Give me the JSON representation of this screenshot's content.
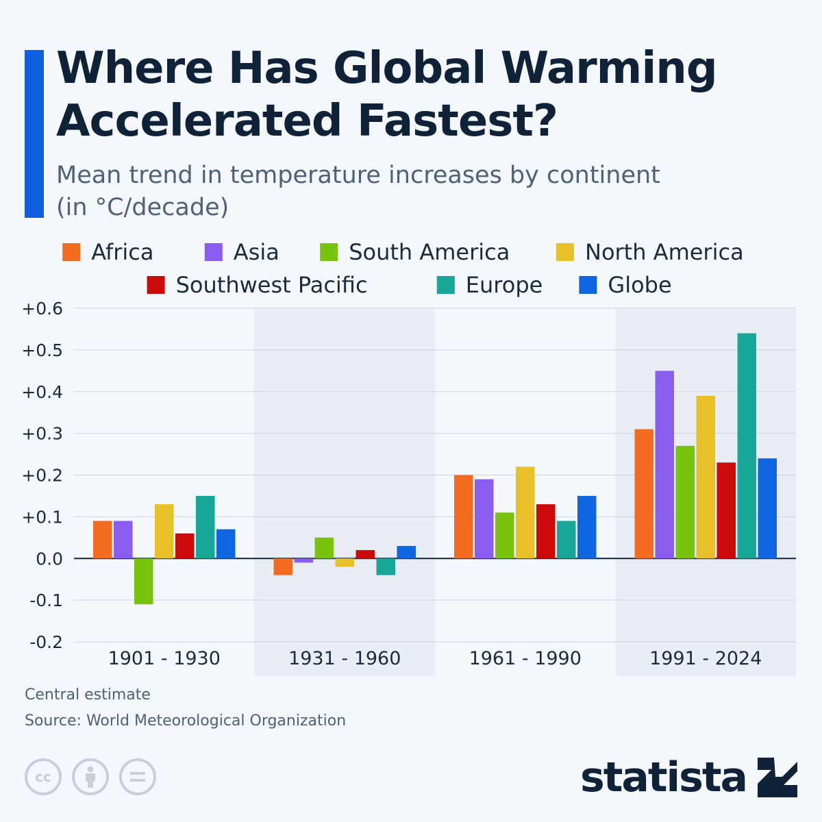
{
  "header": {
    "title": "Where Has Global Warming Accelerated Fastest?",
    "subtitle": "Mean trend in temperature increases by continent (in °C/decade)"
  },
  "footer": {
    "note": "Central estimate",
    "source": "Source: World Meteorological Organization",
    "brand": "statista"
  },
  "license_icons": [
    "cc-icon",
    "attribution-icon",
    "no-derivatives-icon"
  ],
  "chart_data": {
    "type": "bar",
    "title": "Where Has Global Warming Accelerated Fastest?",
    "subtitle": "Mean trend in temperature increases by continent (in °C/decade)",
    "xlabel": "",
    "ylabel": "",
    "ylim": [
      -0.2,
      0.6
    ],
    "yticks": [
      0.6,
      0.5,
      0.4,
      0.3,
      0.2,
      0.1,
      0.0,
      -0.1,
      -0.2
    ],
    "ytick_labels": [
      "+0.6",
      "+0.5",
      "+0.4",
      "+0.3",
      "+0.2",
      "+0.1",
      "0.0",
      "-0.1",
      "-0.2"
    ],
    "grid": true,
    "legend_position": "top-center",
    "categories": [
      "1901 - 1930",
      "1931 - 1960",
      "1961 - 1990",
      "1991 - 2024"
    ],
    "series": [
      {
        "name": "Africa",
        "color": "#f26b21",
        "values": [
          0.09,
          -0.04,
          0.2,
          0.31
        ]
      },
      {
        "name": "Asia",
        "color": "#8b5cf0",
        "values": [
          0.09,
          -0.01,
          0.19,
          0.45
        ]
      },
      {
        "name": "South America",
        "color": "#78c30e",
        "values": [
          -0.11,
          0.05,
          0.11,
          0.27
        ]
      },
      {
        "name": "North America",
        "color": "#e8c02a",
        "values": [
          0.13,
          -0.02,
          0.22,
          0.39
        ]
      },
      {
        "name": "Southwest Pacific",
        "color": "#cc0a0a",
        "values": [
          0.06,
          0.02,
          0.13,
          0.23
        ]
      },
      {
        "name": "Europe",
        "color": "#17a697",
        "values": [
          0.15,
          -0.04,
          0.09,
          0.54
        ]
      },
      {
        "name": "Globe",
        "color": "#0f66e0",
        "values": [
          0.07,
          0.03,
          0.15,
          0.24
        ]
      }
    ]
  }
}
